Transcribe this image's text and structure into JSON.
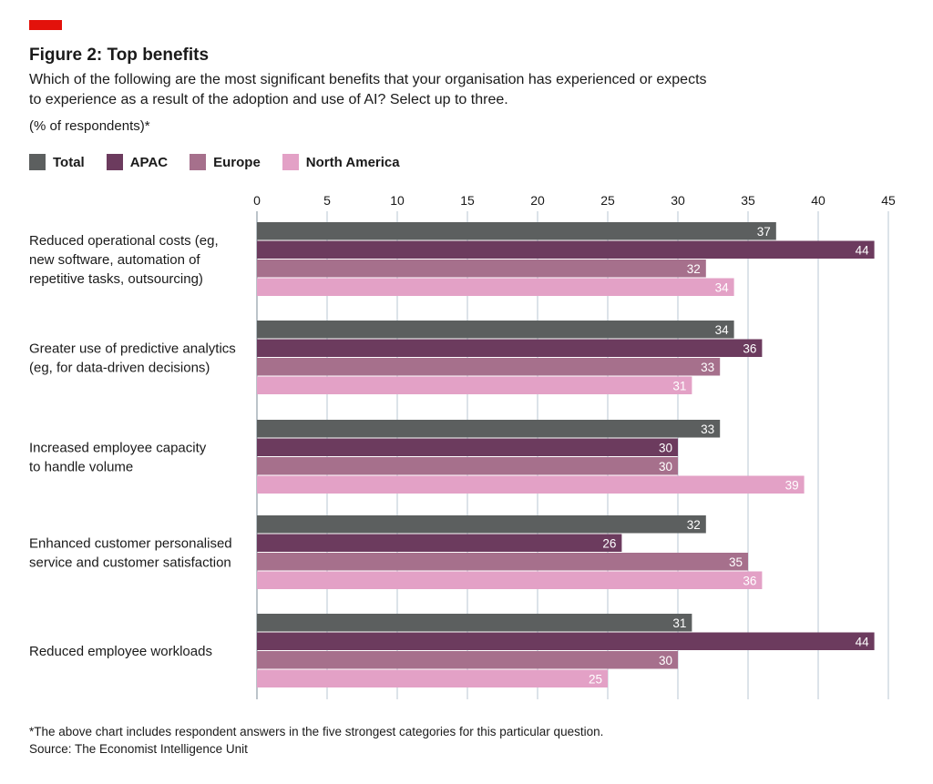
{
  "title": "Figure 2: Top benefits",
  "subtitle": "Which of the following are the most significant benefits that your organisation has experienced or expects to experience as a result of the adoption and use of AI? Select up to three.",
  "units": "(% of respondents)*",
  "footnote": "*The above chart includes respondent answers in the five strongest categories for this particular question.",
  "source": "Source: The Economist Intelligence Unit",
  "colors": {
    "accent": "#e3120b",
    "Total": "#5c5f5f",
    "APAC": "#6c3b5e",
    "Europe": "#a6708c",
    "North America": "#e3a1c6",
    "grid": "#b8c7d3"
  },
  "chart_data": {
    "type": "bar",
    "orientation": "horizontal",
    "xlim": [
      0,
      45
    ],
    "ticks": [
      0,
      5,
      10,
      15,
      20,
      25,
      30,
      35,
      40,
      45
    ],
    "grid": true,
    "legend_position": "top-left",
    "categories": [
      [
        "Reduced operational costs (eg,",
        "new software, automation of",
        "repetitive tasks, outsourcing)"
      ],
      [
        "Greater use of predictive analytics",
        "(eg, for data-driven decisions)"
      ],
      [
        "Increased employee capacity",
        "to handle volume"
      ],
      [
        "Enhanced customer personalised",
        "service and customer satisfaction"
      ],
      [
        "Reduced employee workloads"
      ]
    ],
    "series": [
      {
        "name": "Total",
        "values": [
          37,
          34,
          33,
          32,
          31
        ]
      },
      {
        "name": "APAC",
        "values": [
          44,
          36,
          30,
          26,
          44
        ]
      },
      {
        "name": "Europe",
        "values": [
          32,
          33,
          30,
          35,
          30
        ]
      },
      {
        "name": "North America",
        "values": [
          34,
          31,
          39,
          36,
          25
        ]
      }
    ]
  }
}
